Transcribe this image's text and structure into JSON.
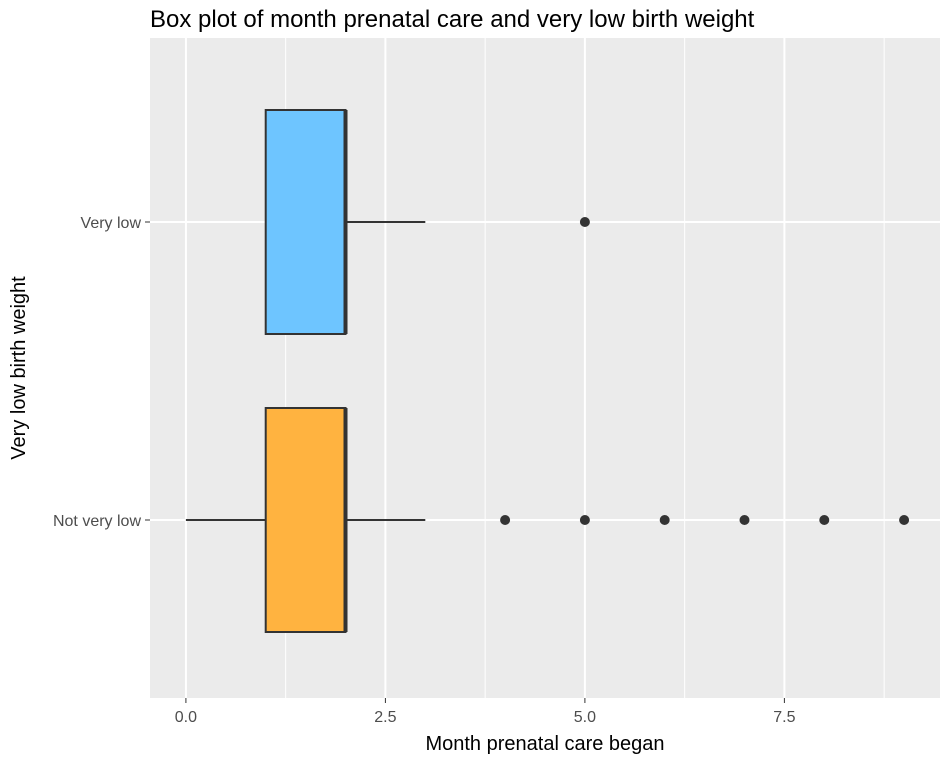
{
  "chart_data": {
    "type": "boxplot",
    "orientation": "horizontal",
    "title": "Box plot of month prenatal care and very low birth weight",
    "xlabel": "Month prenatal care began",
    "ylabel": "Very low birth weight",
    "xlim": [
      -0.45,
      9.45
    ],
    "xticks": [
      0,
      2.5,
      5,
      7.5
    ],
    "xtick_labels": [
      "0.0",
      "2.5",
      "5.0",
      "7.5"
    ],
    "grid": true,
    "legend": "none",
    "colors": {
      "panel": "#ebebeb",
      "grid": "#ffffff",
      "box_stroke": "#333333",
      "outlier": "#333333"
    },
    "categories": [
      "Very low",
      "Not very low"
    ],
    "boxes": [
      {
        "category": "Very low",
        "whisker_low": 1,
        "q1": 1,
        "median": 2,
        "q3": 2,
        "whisker_high": 3,
        "outliers": [
          5
        ],
        "color": "#6ec5ff"
      },
      {
        "category": "Not very low",
        "whisker_low": 0,
        "q1": 1,
        "median": 2,
        "q3": 2,
        "whisker_high": 3,
        "outliers": [
          4,
          5,
          6,
          7,
          8,
          9
        ],
        "color": "#ffb340"
      }
    ]
  }
}
